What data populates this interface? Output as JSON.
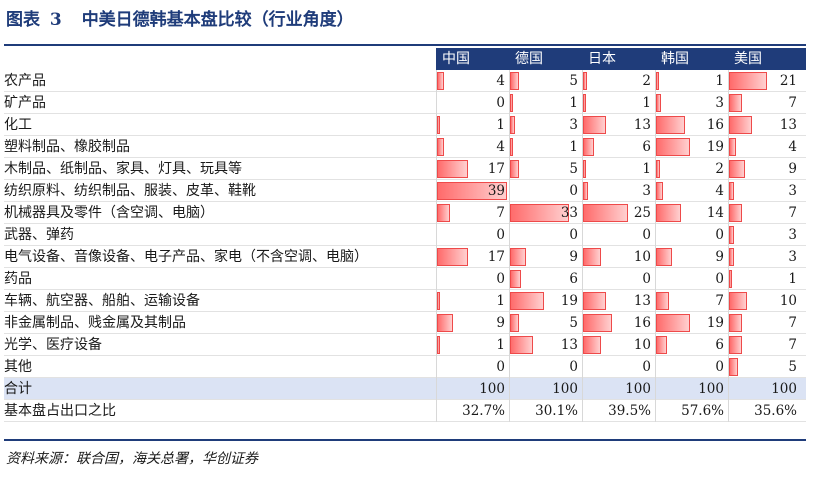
{
  "title": {
    "prefix": "图表",
    "number": "3",
    "text": "中美日德韩基本盘比较（行业角度）"
  },
  "columns": [
    "中国",
    "德国",
    "日本",
    "韩国",
    "美国"
  ],
  "bar_max": 39,
  "rows": [
    {
      "label": "农产品",
      "values": [
        4,
        5,
        2,
        1,
        21
      ]
    },
    {
      "label": "矿产品",
      "values": [
        0,
        1,
        1,
        3,
        7
      ]
    },
    {
      "label": "化工",
      "values": [
        1,
        3,
        13,
        16,
        13
      ]
    },
    {
      "label": "塑料制品、橡胶制品",
      "values": [
        4,
        1,
        6,
        19,
        4
      ]
    },
    {
      "label": "木制品、纸制品、家具、灯具、玩具等",
      "values": [
        17,
        5,
        1,
        2,
        9
      ]
    },
    {
      "label": "纺织原料、纺织制品、服装、皮革、鞋靴",
      "values": [
        39,
        0,
        3,
        4,
        3
      ]
    },
    {
      "label": "机械器具及零件（含空调、电脑）",
      "values": [
        7,
        33,
        25,
        14,
        7
      ]
    },
    {
      "label": "武器、弹药",
      "values": [
        0,
        0,
        0,
        0,
        3
      ]
    },
    {
      "label": "电气设备、音像设备、电子产品、家电（不含空调、电脑）",
      "values": [
        17,
        9,
        10,
        9,
        3
      ]
    },
    {
      "label": "药品",
      "values": [
        0,
        6,
        0,
        0,
        1
      ]
    },
    {
      "label": "车辆、航空器、船舶、运输设备",
      "values": [
        1,
        19,
        13,
        7,
        10
      ]
    },
    {
      "label": "非金属制品、贱金属及其制品",
      "values": [
        9,
        5,
        16,
        19,
        7
      ]
    },
    {
      "label": "光学、医疗设备",
      "values": [
        1,
        13,
        10,
        6,
        7
      ]
    },
    {
      "label": "其他",
      "values": [
        0,
        0,
        0,
        0,
        5
      ]
    }
  ],
  "total": {
    "label": "合计",
    "values": [
      "100",
      "100",
      "100",
      "100",
      "100"
    ]
  },
  "share": {
    "label": "基本盘占出口之比",
    "values": [
      "32.7%",
      "30.1%",
      "39.5%",
      "57.6%",
      "35.6%"
    ]
  },
  "source": "资料来源：联合国，海关总署，华创证券",
  "colors": {
    "accent": "#1f3c7a",
    "bar": "#ff6b6b",
    "total_band": "#dbe3f4"
  }
}
